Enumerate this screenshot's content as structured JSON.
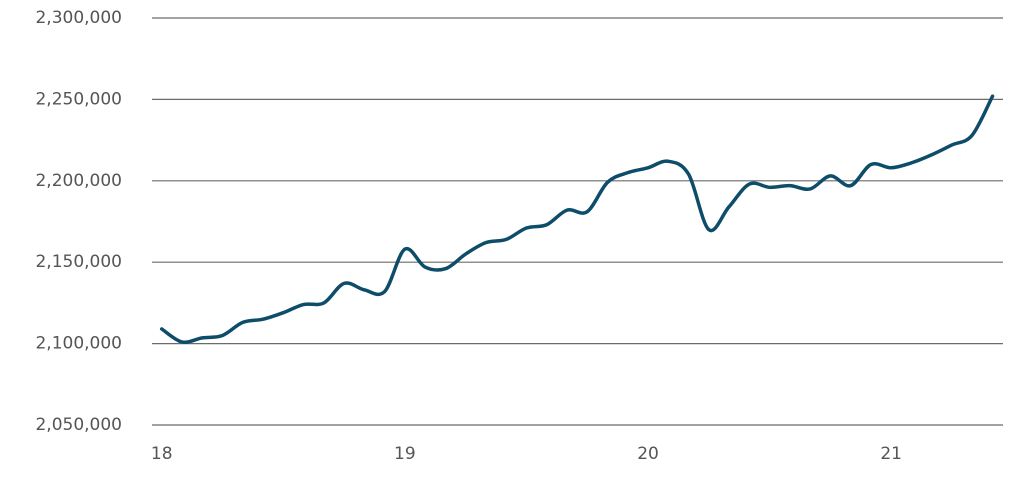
{
  "chart_data": {
    "type": "line",
    "x": [
      18,
      18.083,
      18.167,
      18.25,
      18.333,
      18.417,
      18.5,
      18.583,
      18.667,
      18.75,
      18.833,
      18.917,
      19,
      19.083,
      19.167,
      19.25,
      19.333,
      19.417,
      19.5,
      19.583,
      19.667,
      19.75,
      19.833,
      19.917,
      20,
      20.083,
      20.167,
      20.25,
      20.333,
      20.417,
      20.5,
      20.583,
      20.667,
      20.75,
      20.833,
      20.917,
      21,
      21.083,
      21.167,
      21.25,
      21.333,
      21.417
    ],
    "series": [
      {
        "color": "#0e4d6a",
        "values": [
          2109000,
          2101000,
          2103500,
          2105000,
          2113000,
          2115000,
          2119000,
          2124000,
          2125000,
          2137000,
          2133000,
          2132000,
          2158000,
          2147000,
          2146000,
          2155000,
          2162000,
          2164000,
          2171000,
          2173000,
          2182000,
          2181000,
          2199000,
          2205000,
          2208000,
          2212000,
          2204000,
          2170000,
          2184000,
          2198000,
          2196000,
          2197000,
          2195000,
          2203000,
          2197000,
          2210000,
          2208000,
          2211000,
          2216000,
          2222000,
          2228000,
          2252000
        ]
      }
    ],
    "xlim": [
      17.96,
      21.46
    ],
    "xticks": [
      18,
      19,
      20,
      21
    ],
    "ylim": [
      2050000,
      2300000
    ],
    "yticks": [
      {
        "value": 2050000,
        "label": "2,050,000"
      },
      {
        "value": 2100000,
        "label": "2,100,000"
      },
      {
        "value": 2150000,
        "label": "2,150,000"
      },
      {
        "value": 2200000,
        "label": "2,200,000"
      },
      {
        "value": 2250000,
        "label": "2,250,000"
      },
      {
        "value": 2300000,
        "label": "2,300,000"
      }
    ],
    "grid": true
  }
}
